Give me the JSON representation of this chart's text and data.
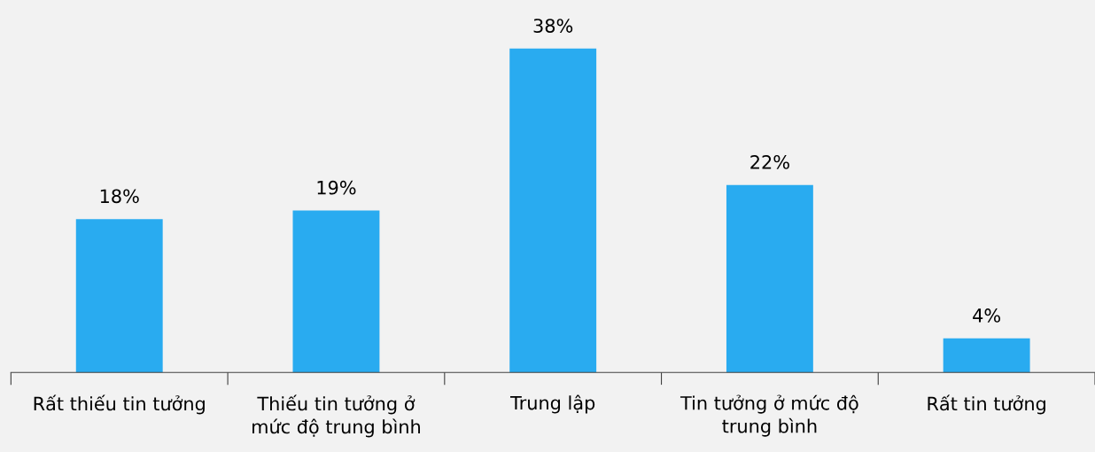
{
  "chart_data": {
    "type": "bar",
    "categories": [
      "Rất thiếu tin tưởng",
      "Thiếu tin tưởng ở\nmức độ trung bình",
      "Trung lập",
      "Tin tưởng ở mức độ\ntrung bình",
      "Rất tin tưởng"
    ],
    "values": [
      18,
      19,
      38,
      22,
      4
    ],
    "value_labels": [
      "18%",
      "19%",
      "38%",
      "22%",
      "4%"
    ],
    "color": "#29abf0",
    "grid": false,
    "legend": false
  }
}
